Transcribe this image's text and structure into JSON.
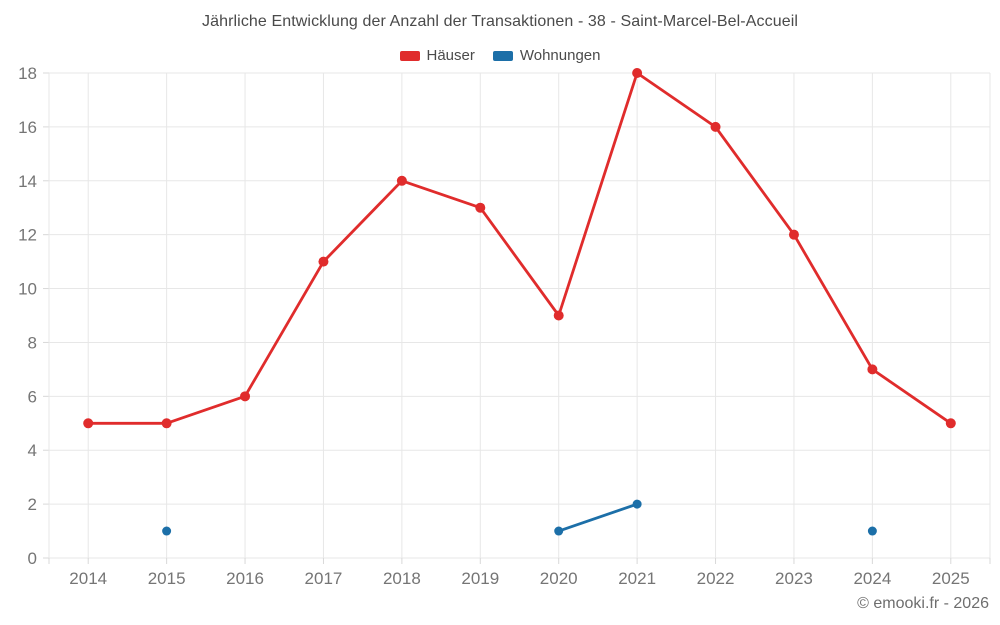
{
  "title": "Jährliche Entwicklung der Anzahl der Transaktionen - 38 - Saint-Marcel-Bel-Accueil",
  "footer": {
    "text": "© emooki.fr - 2026"
  },
  "colors": {
    "grid": "#e7e7e7",
    "tick": "#d8d8d8",
    "axis_text": "#757575",
    "title_text": "#4a4a4a",
    "footer_text": "#6e6e6e"
  },
  "chart_data": {
    "type": "line",
    "title": "Jährliche Entwicklung der Anzahl der Transaktionen - 38 - Saint-Marcel-Bel-Accueil",
    "xlabel": "",
    "ylabel": "",
    "categories": [
      "2014",
      "2015",
      "2016",
      "2017",
      "2018",
      "2019",
      "2020",
      "2021",
      "2022",
      "2023",
      "2024",
      "2025"
    ],
    "y_ticks": [
      0,
      2,
      4,
      6,
      8,
      10,
      12,
      14,
      16,
      18
    ],
    "ylim": [
      0,
      18
    ],
    "grid": true,
    "legend_position": "top",
    "series": [
      {
        "name": "Häuser",
        "color": "#e02c2c",
        "point_radius": 5,
        "values": [
          5,
          5,
          6,
          11,
          14,
          13,
          9,
          18,
          16,
          12,
          7,
          5
        ]
      },
      {
        "name": "Wohnungen",
        "color": "#1c6fa8",
        "point_radius": 4.5,
        "values": [
          null,
          1,
          null,
          null,
          null,
          null,
          1,
          2,
          null,
          null,
          1,
          null
        ]
      }
    ]
  }
}
